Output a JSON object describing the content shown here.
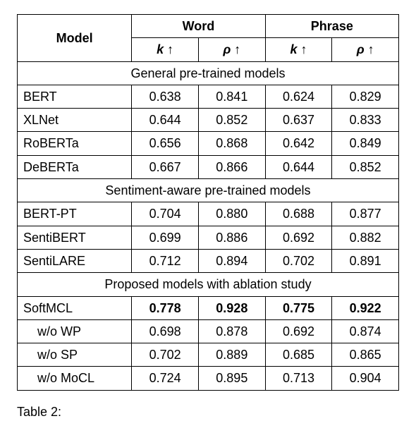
{
  "table": {
    "header": {
      "model": "Model",
      "group_word": "Word",
      "group_phrase": "Phrase",
      "col_k": "k ↑",
      "col_rho": "ρ ↑"
    },
    "sections": [
      {
        "title": "General pre-trained models",
        "rows": [
          {
            "model": "BERT",
            "wk": "0.638",
            "wr": "0.841",
            "pk": "0.624",
            "pr": "0.829",
            "bold": false,
            "indent": false
          },
          {
            "model": "XLNet",
            "wk": "0.644",
            "wr": "0.852",
            "pk": "0.637",
            "pr": "0.833",
            "bold": false,
            "indent": false
          },
          {
            "model": "RoBERTa",
            "wk": "0.656",
            "wr": "0.868",
            "pk": "0.642",
            "pr": "0.849",
            "bold": false,
            "indent": false
          },
          {
            "model": "DeBERTa",
            "wk": "0.667",
            "wr": "0.866",
            "pk": "0.644",
            "pr": "0.852",
            "bold": false,
            "indent": false
          }
        ]
      },
      {
        "title": "Sentiment-aware pre-trained models",
        "rows": [
          {
            "model": "BERT-PT",
            "wk": "0.704",
            "wr": "0.880",
            "pk": "0.688",
            "pr": "0.877",
            "bold": false,
            "indent": false
          },
          {
            "model": "SentiBERT",
            "wk": "0.699",
            "wr": "0.886",
            "pk": "0.692",
            "pr": "0.882",
            "bold": false,
            "indent": false
          },
          {
            "model": "SentiLARE",
            "wk": "0.712",
            "wr": "0.894",
            "pk": "0.702",
            "pr": "0.891",
            "bold": false,
            "indent": false
          }
        ]
      },
      {
        "title": "Proposed models with ablation study",
        "rows": [
          {
            "model": "SoftMCL",
            "wk": "0.778",
            "wr": "0.928",
            "pk": "0.775",
            "pr": "0.922",
            "bold": true,
            "indent": false
          },
          {
            "model": "w/o WP",
            "wk": "0.698",
            "wr": "0.878",
            "pk": "0.692",
            "pr": "0.874",
            "bold": false,
            "indent": true
          },
          {
            "model": "w/o SP",
            "wk": "0.702",
            "wr": "0.889",
            "pk": "0.685",
            "pr": "0.865",
            "bold": false,
            "indent": true
          },
          {
            "model": "w/o MoCL",
            "wk": "0.724",
            "wr": "0.895",
            "pk": "0.713",
            "pr": "0.904",
            "bold": false,
            "indent": true
          }
        ]
      }
    ]
  },
  "caption_prefix": "Table 2: "
}
